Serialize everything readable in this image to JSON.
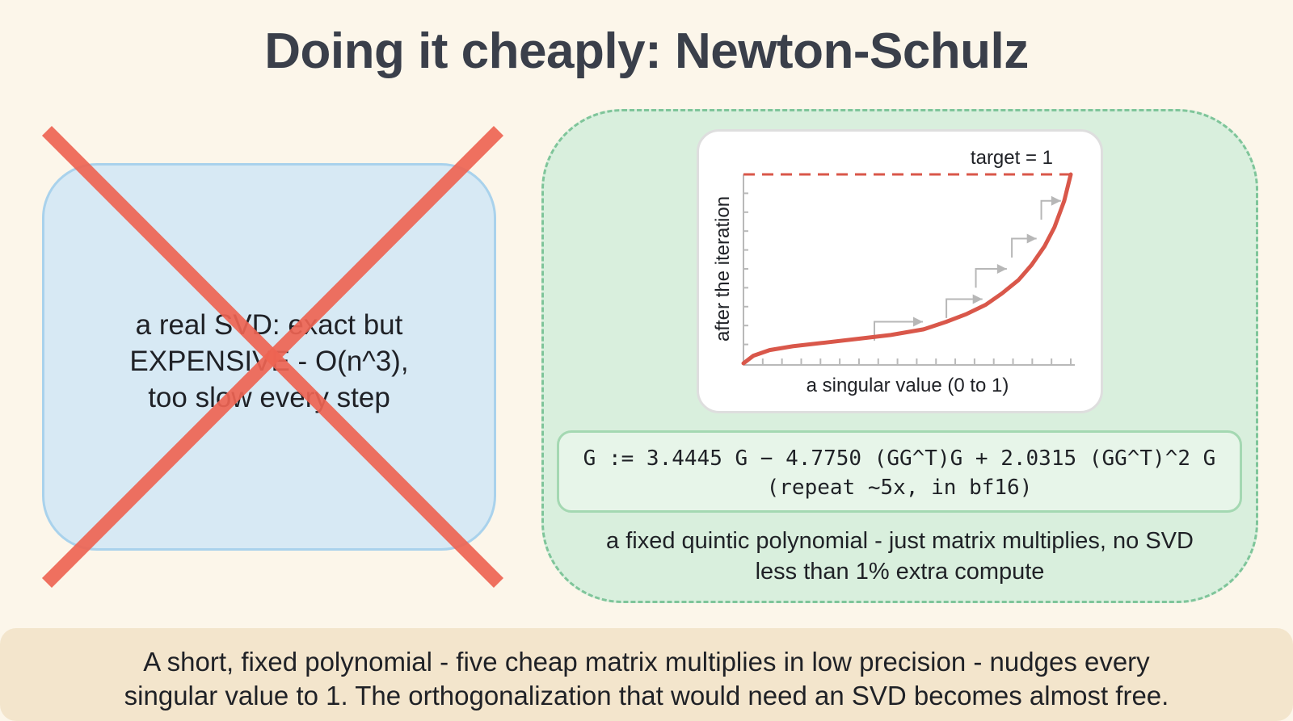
{
  "title": "Doing it cheaply: Newton-Schulz",
  "left_panel": {
    "text": "a real SVD: exact but\nEXPENSIVE - O(n^3),\ntoo slow every step",
    "cross_color": "#ee6452"
  },
  "chart": {
    "target_label": "target = 1",
    "xlabel": "a singular value (0 to 1)",
    "ylabel": "after the iteration",
    "curve_color": "#d9574a",
    "target_color": "#d9574a"
  },
  "chart_data": {
    "type": "line",
    "title": "",
    "xlabel": "a singular value (0 to 1)",
    "ylabel": "after the iteration",
    "xlim": [
      0,
      1
    ],
    "ylim": [
      0,
      1
    ],
    "target": 1,
    "series": [
      {
        "x": [
          0.0,
          0.03,
          0.08,
          0.15,
          0.25,
          0.35,
          0.45,
          0.55,
          0.62,
          0.68,
          0.74,
          0.79,
          0.84,
          0.88,
          0.92,
          0.95,
          0.98,
          1.0
        ],
        "values": [
          0.0,
          0.04,
          0.07,
          0.09,
          0.11,
          0.13,
          0.15,
          0.18,
          0.22,
          0.26,
          0.31,
          0.37,
          0.44,
          0.52,
          0.62,
          0.72,
          0.86,
          1.0
        ]
      }
    ],
    "steps": [
      [
        0.4,
        0.22
      ],
      [
        0.62,
        0.34
      ],
      [
        0.71,
        0.5
      ],
      [
        0.82,
        0.66
      ],
      [
        0.91,
        0.86
      ]
    ]
  },
  "formula": {
    "line1": "G := 3.4445 G − 4.7750 (GG^T)G + 2.0315 (GG^T)^2 G",
    "line2": "(repeat ~5x, in bf16)"
  },
  "right_caption": {
    "line1": "a fixed quintic polynomial - just matrix multiplies, no SVD",
    "line2": "less than 1% extra compute"
  },
  "footer": {
    "line1": "A short, fixed polynomial - five cheap matrix multiplies in low precision - nudges every",
    "line2": "singular value to 1. The orthogonalization that would need an SVD becomes almost free."
  }
}
